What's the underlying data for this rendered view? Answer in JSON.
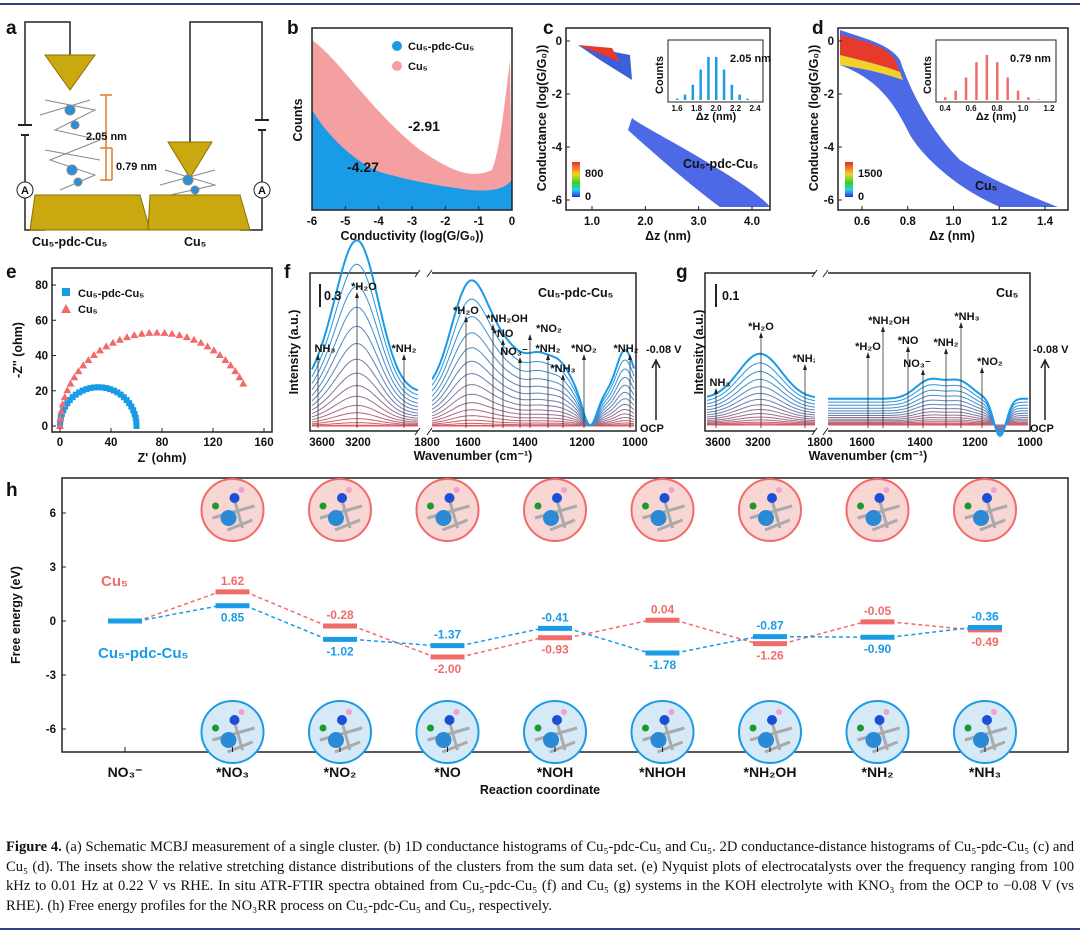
{
  "panels": {
    "a": "a",
    "b": "b",
    "c": "c",
    "d": "d",
    "e": "e",
    "f": "f",
    "g": "g",
    "h": "h"
  },
  "a": {
    "gap1": "2.05 nm",
    "gap2": "0.79 nm",
    "label_left": "Cu₅-pdc-Cu₅",
    "label_right": "Cu₅",
    "ammeter": "A"
  },
  "b": {
    "legend": [
      "Cu₅-pdc-Cu₅",
      "Cu₅"
    ],
    "colors": [
      "#1a9be6",
      "#f4a0a0"
    ],
    "ylabel": "Counts",
    "xlabel": "Conductivity (log(G/G₀))",
    "xticks": [
      "-6",
      "-5",
      "-4",
      "-3",
      "-2",
      "-1",
      "0"
    ],
    "peak_blue": "-4.27",
    "peak_red": "-2.91"
  },
  "c": {
    "ylabel": "Conductance (log(G/G₀))",
    "xlabel": "Δz (nm)",
    "xticks": [
      "1.0",
      "2.0",
      "3.0",
      "4.0"
    ],
    "yticks": [
      "0",
      "-2",
      "-4",
      "-6"
    ],
    "name": "Cu₅-pdc-Cu₅",
    "cbar": [
      "800",
      "0"
    ],
    "inset": {
      "ylabel": "Counts",
      "xlabel": "Δz (nm)",
      "peak": "2.05 nm",
      "xticks": [
        "1.6",
        "1.8",
        "2.0",
        "2.2",
        "2.4"
      ]
    }
  },
  "d": {
    "ylabel": "Conductance (log(G/G₀))",
    "xlabel": "Δz (nm)",
    "xticks": [
      "0.6",
      "0.8",
      "1.0",
      "1.2",
      "1.4"
    ],
    "yticks": [
      "0",
      "-2",
      "-4",
      "-6"
    ],
    "name": "Cu₅",
    "cbar": [
      "1500",
      "0"
    ],
    "inset": {
      "ylabel": "Counts",
      "xlabel": "Δz (nm)",
      "peak": "0.79 nm",
      "xticks": [
        "0.4",
        "0.6",
        "0.8",
        "1.0",
        "1.2"
      ]
    }
  },
  "e": {
    "legend": [
      "Cu₅-pdc-Cu₅",
      "Cu₅"
    ],
    "colors": [
      "#1a9be6",
      "#f26b6b"
    ],
    "ylabel": "-Z'' (ohm)",
    "xlabel": "Z' (ohm)",
    "xticks": [
      "0",
      "40",
      "80",
      "120",
      "160"
    ],
    "yticks": [
      "0",
      "20",
      "40",
      "60",
      "80"
    ]
  },
  "f": {
    "ylabel": "Intensity (a.u.)",
    "xlabel": "Wavenumber (cm⁻¹)",
    "xticks": [
      "3600",
      "3200",
      "1800",
      "1600",
      "1400",
      "1200",
      "1000"
    ],
    "scale": "0.3",
    "name": "Cu₅-pdc-Cu₅",
    "potential_top": "-0.08 V",
    "potential_bottom": "OCP",
    "peaks": [
      "NH₃",
      "*H₂O",
      "*NH₂",
      "*H₂O",
      "*NH₂OH",
      "*NO",
      "NO₃⁻",
      "*NO₂",
      "*NH₂",
      "*NH₃",
      "*NO₂",
      "*NH₂"
    ]
  },
  "g": {
    "ylabel": "Intensity (a.u.)",
    "xlabel": "Wavenumber (cm⁻¹)",
    "xticks": [
      "3600",
      "3200",
      "1800",
      "1600",
      "1400",
      "1200",
      "1000"
    ],
    "scale": "0.1",
    "name": "Cu₅",
    "potential_top": "-0.08 V",
    "potential_bottom": "OCP",
    "peaks": [
      "NH₃",
      "*H₂O",
      "*NH₂",
      "*H₂O",
      "*NH₂OH",
      "*NO",
      "NO₃⁻",
      "*NH₂",
      "*NH₃",
      "*NO₂"
    ]
  },
  "chart_data": {
    "type": "line",
    "title": "",
    "xlabel": "Reaction coordinate",
    "ylabel": "Free energy (eV)",
    "ylim": [
      -7.5,
      7.5
    ],
    "yticks": [
      "6",
      "3",
      "0",
      "-3",
      "-6"
    ],
    "categories": [
      "NO₃⁻",
      "*NO₃",
      "*NO₂",
      "*NO",
      "*NOH",
      "*NHOH",
      "*NH₂OH",
      "*NH₂",
      "*NH₃"
    ],
    "series": [
      {
        "name": "Cu₅",
        "color": "#f26b6b",
        "values": [
          0,
          1.62,
          -0.28,
          -2.0,
          -0.93,
          0.04,
          -1.26,
          -0.05,
          -0.49
        ]
      },
      {
        "name": "Cu₅-pdc-Cu₅",
        "color": "#1a9be6",
        "values": [
          0,
          0.85,
          -1.02,
          -1.37,
          -0.41,
          -1.78,
          -0.87,
          -0.9,
          -0.36
        ]
      }
    ]
  },
  "caption": {
    "label": "Figure 4.",
    "text": " (a) Schematic MCBJ measurement of a single cluster. (b) 1D conductance histograms of Cu₅-pdc-Cu₅ and Cu₅. 2D conductance-distance histograms of Cu₅-pdc-Cu₅ (c) and Cu₅ (d). The insets show the relative stretching distance distributions of the clusters from the sum data set. (e) Nyquist plots of electrocatalysts over the frequency ranging from 100 kHz to 0.01 Hz at 0.22 V vs RHE. In situ ATR-FTIR spectra obtained from Cu₅-pdc-Cu₅ (f) and Cu₅ (g) systems in the KOH electrolyte with KNO₃ from the OCP to −0.08 V (vs RHE). (h) Free energy profiles for the NO₃RR process on Cu₅-pdc-Cu₅ and Cu₅, respectively."
  }
}
